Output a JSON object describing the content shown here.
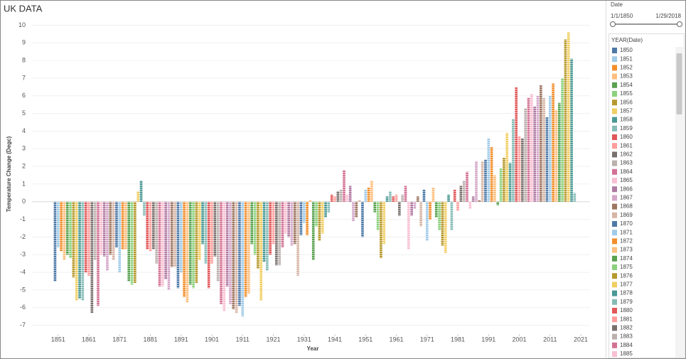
{
  "chart_data": {
    "type": "bar",
    "title": "UK DATA",
    "x_label": "Year",
    "y_label": "Temperature Change (Degc)",
    "x": [
      1850,
      1851,
      1852,
      1853,
      1854,
      1855,
      1856,
      1857,
      1858,
      1859,
      1860,
      1861,
      1862,
      1863,
      1864,
      1865,
      1866,
      1867,
      1868,
      1869,
      1870,
      1871,
      1872,
      1873,
      1874,
      1875,
      1876,
      1877,
      1878,
      1879,
      1880,
      1881,
      1882,
      1883,
      1884,
      1885,
      1886,
      1887,
      1888,
      1889,
      1890,
      1891,
      1892,
      1893,
      1894,
      1895,
      1896,
      1897,
      1898,
      1899,
      1900,
      1901,
      1902,
      1903,
      1904,
      1905,
      1906,
      1907,
      1908,
      1909,
      1910,
      1911,
      1912,
      1913,
      1914,
      1915,
      1916,
      1917,
      1918,
      1919,
      1920,
      1921,
      1922,
      1923,
      1924,
      1925,
      1926,
      1927,
      1928,
      1929,
      1930,
      1931,
      1932,
      1933,
      1934,
      1935,
      1936,
      1937,
      1938,
      1939,
      1940,
      1941,
      1942,
      1943,
      1944,
      1945,
      1946,
      1947,
      1948,
      1949,
      1950,
      1951,
      1952,
      1953,
      1954,
      1955,
      1956,
      1957,
      1958,
      1959,
      1960,
      1961,
      1962,
      1963,
      1964,
      1965,
      1966,
      1967,
      1968,
      1969,
      1970,
      1971,
      1972,
      1973,
      1974,
      1975,
      1976,
      1977,
      1978,
      1979,
      1980,
      1981,
      1982,
      1983,
      1984,
      1985,
      1986,
      1987,
      1988,
      1989,
      1990,
      1991,
      1992,
      1993,
      1994,
      1995,
      1996,
      1997,
      1998,
      1999,
      2000,
      2001,
      2002,
      2003,
      2004,
      2005,
      2006,
      2007,
      2008,
      2009,
      2010,
      2011,
      2012,
      2013,
      2014,
      2015,
      2016,
      2017,
      2018,
      2019
    ],
    "values": [
      -4.5,
      -2.6,
      -2.8,
      -3.3,
      -3.0,
      -3.2,
      -4.3,
      -5.6,
      -5.5,
      -5.6,
      -4.0,
      -4.2,
      -6.3,
      -3.3,
      -5.9,
      -3.0,
      -3.1,
      -3.9,
      -3.0,
      -3.3,
      -2.6,
      -4.0,
      -2.7,
      -2.7,
      -4.5,
      -4.7,
      -4.6,
      0.6,
      1.2,
      -0.8,
      -2.7,
      -2.8,
      -2.7,
      -3.5,
      -4.8,
      -4.8,
      -4.4,
      -5.0,
      -3.7,
      -3.7,
      -4.9,
      -4.0,
      -5.4,
      -5.7,
      -4.7,
      -4.9,
      -4.6,
      -3.3,
      -2.4,
      -3.5,
      -4.9,
      -3.5,
      -3.1,
      -4.5,
      -5.8,
      -6.2,
      -4.8,
      -5.8,
      -6.1,
      -6.3,
      -5.9,
      -6.5,
      -5.4,
      -5.2,
      -2.4,
      -3.0,
      -3.8,
      -5.6,
      -3.4,
      -3.9,
      -3.0,
      -2.4,
      -3.6,
      -3.6,
      -2.6,
      -1.8,
      -2.0,
      -2.5,
      -2.4,
      -4.2,
      -1.9,
      -1.2,
      -1.9,
      0.1,
      -3.3,
      -1.4,
      -2.2,
      -1.8,
      -0.9,
      -0.6,
      0.4,
      0.3,
      0.6,
      0.7,
      1.8,
      0.4,
      0.9,
      -1.1,
      -0.9,
      0.1,
      -2.0,
      0.7,
      0.8,
      1.2,
      -0.6,
      -1.6,
      -3.2,
      -2.4,
      0.3,
      0.6,
      0.3,
      0.4,
      -0.8,
      0.4,
      0.9,
      -2.7,
      -0.8,
      -0.4,
      0.3,
      -1.4,
      0.7,
      -2.2,
      -1.0,
      0.8,
      -0.9,
      -1.6,
      -2.5,
      -2.9,
      0.4,
      -1.6,
      0.7,
      -0.5,
      0.9,
      1.2,
      1.7,
      -0.4,
      0.3,
      2.3,
      0.1,
      2.3,
      2.4,
      3.6,
      3.1,
      1.5,
      -0.2,
      1.9,
      2.5,
      3.9,
      2.2,
      4.7,
      6.5,
      3.7,
      3.6,
      5.3,
      5.9,
      6.1,
      5.4,
      6.0,
      6.6,
      5.9,
      4.8,
      6.0,
      6.7,
      5.2,
      5.6,
      7.0,
      9.2,
      9.6,
      8.1,
      0.5
    ],
    "colors": [
      "#4e79a7",
      "#a0cbe8",
      "#f28e2b",
      "#ffbe7d",
      "#59a14f",
      "#8cd17d",
      "#b6992d",
      "#f1ce63",
      "#499894",
      "#86bcb6",
      "#e15759",
      "#ff9d9a",
      "#79706e",
      "#bab0ac",
      "#d37295",
      "#fabfd2",
      "#b07aa1",
      "#d4a6c8",
      "#9d7660",
      "#d7b5a6"
    ],
    "xlim": [
      1842.5,
      2024
    ],
    "xticks": [
      1851,
      1861,
      1871,
      1881,
      1891,
      1901,
      1911,
      1921,
      1931,
      1941,
      1951,
      1961,
      1971,
      1981,
      1991,
      2001,
      2011,
      2021
    ],
    "ylim": [
      -7.5,
      10.3
    ],
    "yticks": [
      -7,
      -6,
      -5,
      -4,
      -3,
      -2,
      -1,
      0,
      1,
      2,
      3,
      4,
      5,
      6,
      7,
      8,
      9,
      10
    ],
    "grid": true,
    "filter": {
      "title": "Date",
      "start": "1/1/1850",
      "end": "1/29/2018"
    },
    "legend": {
      "title": "YEAR(Date)"
    }
  }
}
